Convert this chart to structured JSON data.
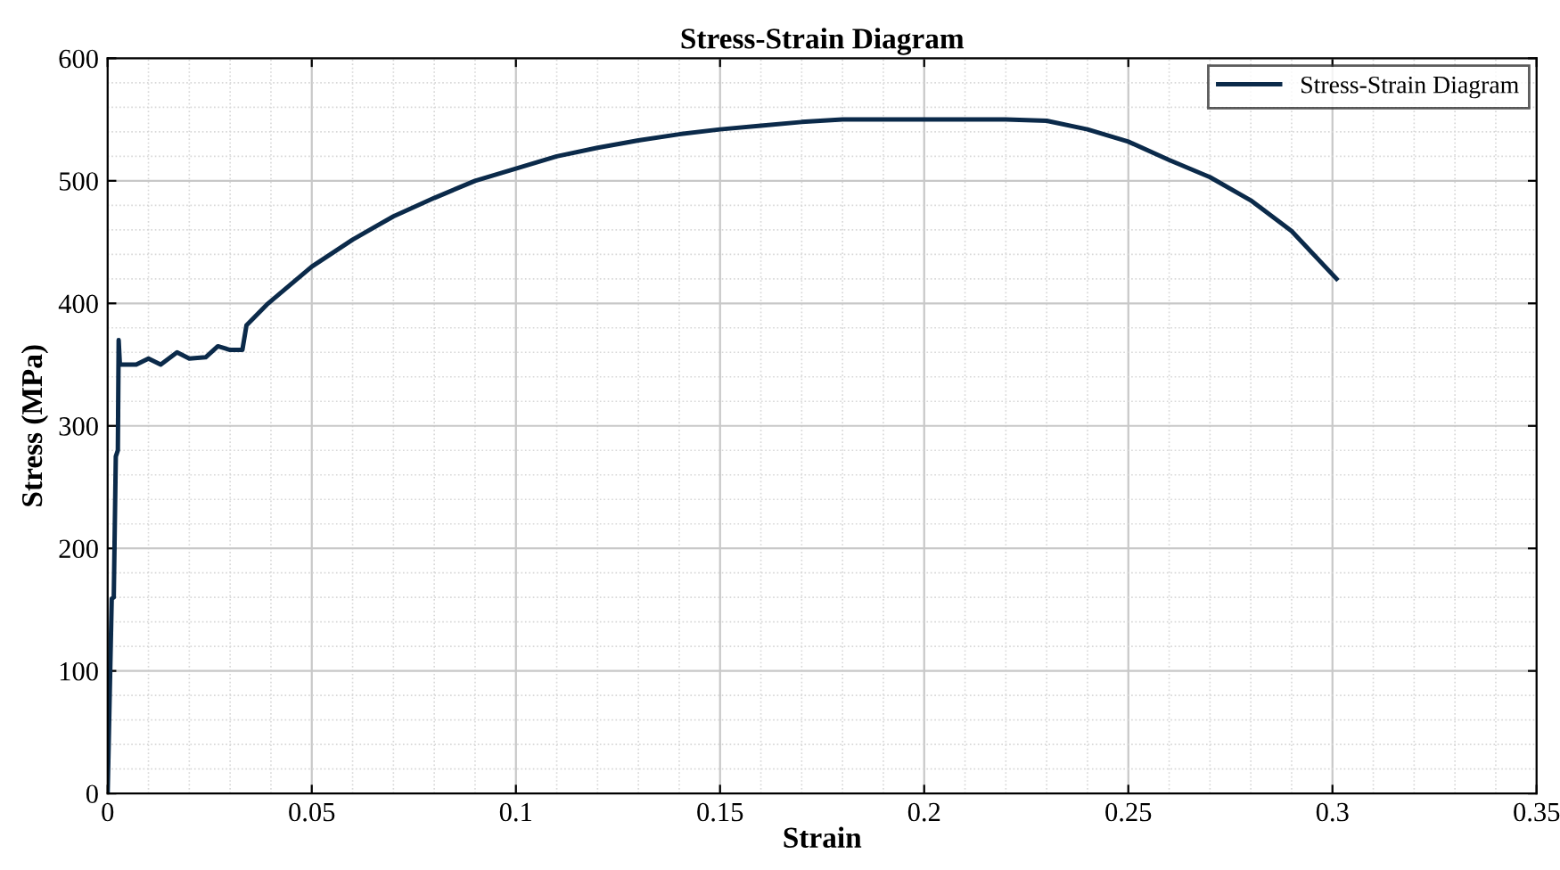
{
  "chart_data": {
    "type": "line",
    "title": "Stress-Strain Diagram",
    "xlabel": "Strain",
    "ylabel": "Stress (MPa)",
    "xlim": [
      0,
      0.35
    ],
    "xticks": [
      0,
      0.05,
      0.1,
      0.15,
      0.2,
      0.25,
      0.3,
      0.35
    ],
    "ylim": [
      0,
      600
    ],
    "yticks": [
      0,
      100,
      200,
      300,
      400,
      500,
      600
    ],
    "grid": true,
    "legend": "top right",
    "line_style": "solid",
    "marker": "none",
    "series": [
      {
        "name": "Stress-Strain Diagram",
        "color": "#0b2a4a",
        "x": [
          0,
          0.001,
          0.0015,
          0.002,
          0.0025,
          0.0027,
          0.003,
          0.007,
          0.01,
          0.013,
          0.017,
          0.02,
          0.024,
          0.027,
          0.03,
          0.033,
          0.034,
          0.039,
          0.05,
          0.06,
          0.07,
          0.08,
          0.09,
          0.1,
          0.11,
          0.12,
          0.13,
          0.14,
          0.15,
          0.16,
          0.17,
          0.18,
          0.19,
          0.2,
          0.21,
          0.22,
          0.23,
          0.24,
          0.25,
          0.26,
          0.27,
          0.28,
          0.29,
          0.301
        ],
        "values": [
          0,
          159,
          160,
          275,
          280,
          370,
          350,
          350,
          355,
          350,
          360,
          355,
          356,
          365,
          362,
          362,
          382,
          399,
          430,
          452,
          471,
          486,
          500,
          510,
          520,
          527,
          533,
          538,
          542,
          545,
          548,
          550,
          550,
          550,
          550,
          550,
          549,
          542,
          532,
          517,
          503,
          484,
          459,
          420
        ]
      }
    ]
  }
}
